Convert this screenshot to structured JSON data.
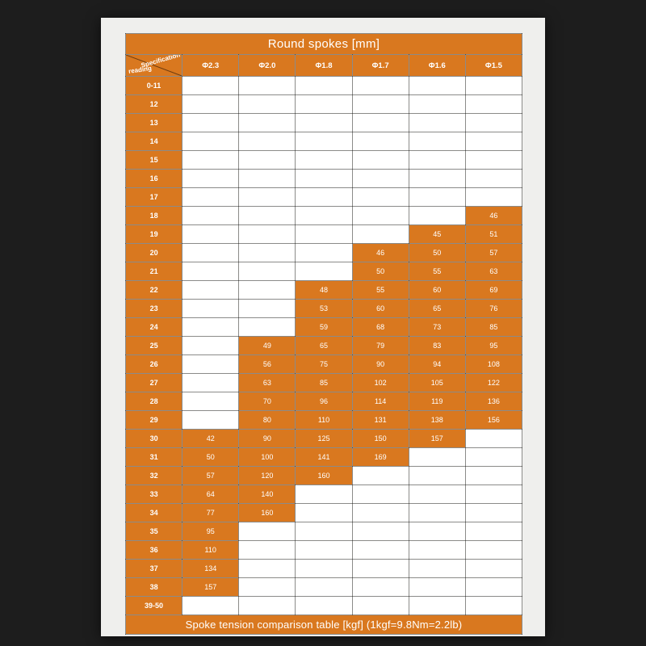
{
  "colors": {
    "orange": "#d9781f",
    "card_bg": "#efefed",
    "page_bg": "#1d1d1d",
    "cell_bg": "#ffffff",
    "text": "#ffffff"
  },
  "table": {
    "title": "Round spokes [mm]",
    "footer": "Spoke tension comparison table [kgf] (1kgf=9.8Nm=2.2lb)",
    "corner_top": "Specification",
    "corner_bottom": "reading",
    "columns": [
      "Φ2.3",
      "Φ2.0",
      "Φ1.8",
      "Φ1.7",
      "Φ1.6",
      "Φ1.5"
    ],
    "rows": [
      {
        "label": "0-11",
        "values": [
          "",
          "",
          "",
          "",
          "",
          ""
        ]
      },
      {
        "label": "12",
        "values": [
          "",
          "",
          "",
          "",
          "",
          ""
        ]
      },
      {
        "label": "13",
        "values": [
          "",
          "",
          "",
          "",
          "",
          ""
        ]
      },
      {
        "label": "14",
        "values": [
          "",
          "",
          "",
          "",
          "",
          ""
        ]
      },
      {
        "label": "15",
        "values": [
          "",
          "",
          "",
          "",
          "",
          ""
        ]
      },
      {
        "label": "16",
        "values": [
          "",
          "",
          "",
          "",
          "",
          ""
        ]
      },
      {
        "label": "17",
        "values": [
          "",
          "",
          "",
          "",
          "",
          ""
        ]
      },
      {
        "label": "18",
        "values": [
          "",
          "",
          "",
          "",
          "",
          "46"
        ]
      },
      {
        "label": "19",
        "values": [
          "",
          "",
          "",
          "",
          "45",
          "51"
        ]
      },
      {
        "label": "20",
        "values": [
          "",
          "",
          "",
          "46",
          "50",
          "57"
        ]
      },
      {
        "label": "21",
        "values": [
          "",
          "",
          "",
          "50",
          "55",
          "63"
        ]
      },
      {
        "label": "22",
        "values": [
          "",
          "",
          "48",
          "55",
          "60",
          "69"
        ]
      },
      {
        "label": "23",
        "values": [
          "",
          "",
          "53",
          "60",
          "65",
          "76"
        ]
      },
      {
        "label": "24",
        "values": [
          "",
          "",
          "59",
          "68",
          "73",
          "85"
        ]
      },
      {
        "label": "25",
        "values": [
          "",
          "49",
          "65",
          "79",
          "83",
          "95"
        ]
      },
      {
        "label": "26",
        "values": [
          "",
          "56",
          "75",
          "90",
          "94",
          "108"
        ]
      },
      {
        "label": "27",
        "values": [
          "",
          "63",
          "85",
          "102",
          "105",
          "122"
        ]
      },
      {
        "label": "28",
        "values": [
          "",
          "70",
          "96",
          "114",
          "119",
          "136"
        ]
      },
      {
        "label": "29",
        "values": [
          "",
          "80",
          "110",
          "131",
          "138",
          "156"
        ]
      },
      {
        "label": "30",
        "values": [
          "42",
          "90",
          "125",
          "150",
          "157",
          ""
        ]
      },
      {
        "label": "31",
        "values": [
          "50",
          "100",
          "141",
          "169",
          "",
          ""
        ]
      },
      {
        "label": "32",
        "values": [
          "57",
          "120",
          "160",
          "",
          "",
          ""
        ]
      },
      {
        "label": "33",
        "values": [
          "64",
          "140",
          "",
          "",
          "",
          ""
        ]
      },
      {
        "label": "34",
        "values": [
          "77",
          "160",
          "",
          "",
          "",
          ""
        ]
      },
      {
        "label": "35",
        "values": [
          "95",
          "",
          "",
          "",
          "",
          ""
        ]
      },
      {
        "label": "36",
        "values": [
          "110",
          "",
          "",
          "",
          "",
          ""
        ]
      },
      {
        "label": "37",
        "values": [
          "134",
          "",
          "",
          "",
          "",
          ""
        ]
      },
      {
        "label": "38",
        "values": [
          "157",
          "",
          "",
          "",
          "",
          ""
        ]
      },
      {
        "label": "39-50",
        "values": [
          "",
          "",
          "",
          "",
          "",
          ""
        ]
      }
    ]
  }
}
